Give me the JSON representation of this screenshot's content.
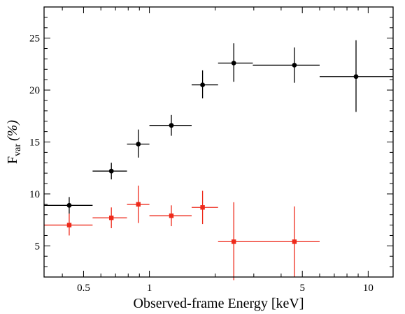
{
  "chart_data": {
    "type": "scatter",
    "title": "",
    "xlabel": "Observed-frame Energy [keV]",
    "ylabel_main": "F",
    "ylabel_sub": "var",
    "ylabel_unit": "(%)",
    "x_scale": "log",
    "xlim": [
      0.33,
      13
    ],
    "ylim": [
      2,
      28
    ],
    "x_ticks": [
      {
        "value": 0.5,
        "label": "0.5"
      },
      {
        "value": 1,
        "label": "1"
      },
      {
        "value": 5,
        "label": "5"
      },
      {
        "value": 10,
        "label": "10"
      }
    ],
    "x_minor_ticks": [
      0.4,
      0.6,
      0.7,
      0.8,
      0.9,
      2,
      3,
      4,
      6,
      7,
      8,
      9
    ],
    "y_ticks": [
      {
        "value": 5,
        "label": "5"
      },
      {
        "value": 10,
        "label": "10"
      },
      {
        "value": 15,
        "label": "15"
      },
      {
        "value": 20,
        "label": "20"
      },
      {
        "value": 25,
        "label": "25"
      }
    ],
    "grid": false,
    "legend": "none",
    "series": [
      {
        "color": "#000000",
        "marker": "circle",
        "points": [
          {
            "x": 0.43,
            "xlo": 0.33,
            "xhi": 0.55,
            "y": 8.9,
            "ylo": 8.1,
            "yhi": 9.7
          },
          {
            "x": 0.67,
            "xlo": 0.55,
            "xhi": 0.79,
            "y": 12.2,
            "ylo": 11.4,
            "yhi": 13.0
          },
          {
            "x": 0.89,
            "xlo": 0.79,
            "xhi": 1.0,
            "y": 14.8,
            "ylo": 13.5,
            "yhi": 16.2
          },
          {
            "x": 1.26,
            "xlo": 1.0,
            "xhi": 1.56,
            "y": 16.6,
            "ylo": 15.6,
            "yhi": 17.6
          },
          {
            "x": 1.75,
            "xlo": 1.56,
            "xhi": 2.06,
            "y": 20.5,
            "ylo": 19.2,
            "yhi": 21.9
          },
          {
            "x": 2.43,
            "xlo": 2.06,
            "xhi": 2.97,
            "y": 22.6,
            "ylo": 20.8,
            "yhi": 24.5
          },
          {
            "x": 4.6,
            "xlo": 2.97,
            "xhi": 6.0,
            "y": 22.4,
            "ylo": 20.7,
            "yhi": 24.1
          },
          {
            "x": 8.8,
            "xlo": 6.0,
            "xhi": 13.0,
            "y": 21.3,
            "ylo": 17.9,
            "yhi": 24.8
          }
        ]
      },
      {
        "color": "#ee2a1b",
        "marker": "square",
        "points": [
          {
            "x": 0.43,
            "xlo": 0.33,
            "xhi": 0.55,
            "y": 7.0,
            "ylo": 6.0,
            "yhi": 8.1
          },
          {
            "x": 0.67,
            "xlo": 0.55,
            "xhi": 0.79,
            "y": 7.7,
            "ylo": 6.7,
            "yhi": 8.7
          },
          {
            "x": 0.89,
            "xlo": 0.79,
            "xhi": 1.0,
            "y": 9.0,
            "ylo": 7.2,
            "yhi": 10.8
          },
          {
            "x": 1.26,
            "xlo": 1.0,
            "xhi": 1.56,
            "y": 7.9,
            "ylo": 6.9,
            "yhi": 8.9
          },
          {
            "x": 1.75,
            "xlo": 1.56,
            "xhi": 2.06,
            "y": 8.7,
            "ylo": 7.1,
            "yhi": 10.3
          },
          {
            "x": 2.43,
            "xlo": 2.06,
            "xhi": 2.97,
            "y": 5.4,
            "ylo": 1.7,
            "yhi": 9.2
          },
          {
            "x": 4.6,
            "xlo": 2.97,
            "xhi": 6.0,
            "y": 5.4,
            "ylo": 2.0,
            "yhi": 8.8
          }
        ]
      }
    ]
  }
}
